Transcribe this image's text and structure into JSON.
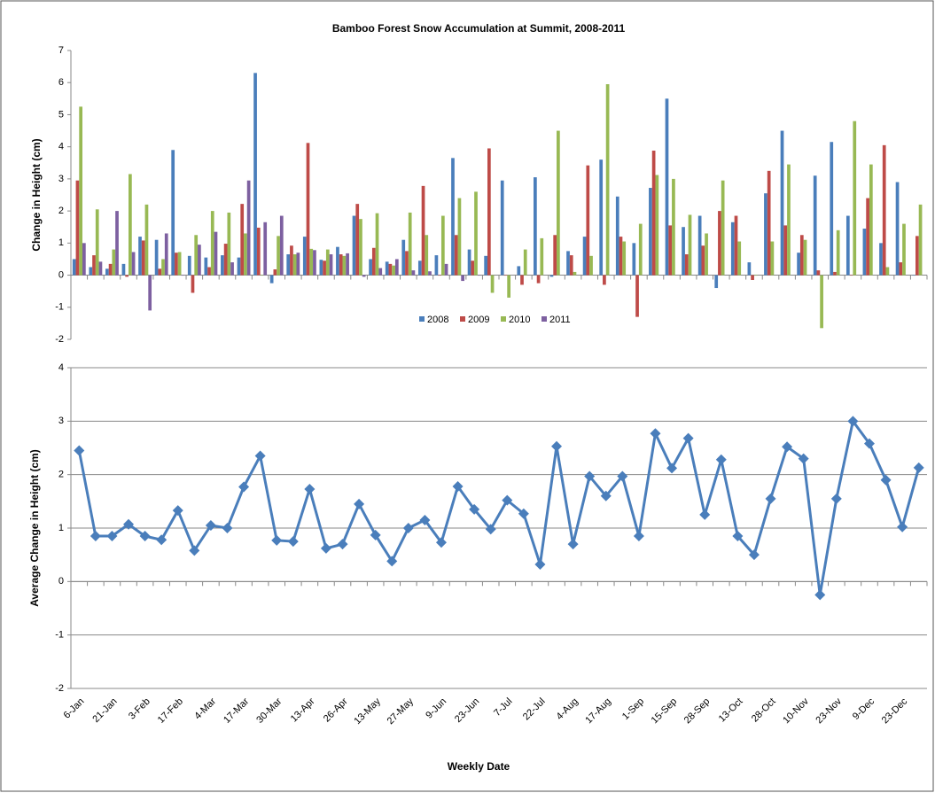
{
  "chart_data": [
    {
      "type": "bar",
      "title": "Bamboo Forest Snow Accumulation at Summit, 2008-2011",
      "ylabel": "Change in Height (cm)",
      "ylim": [
        -2,
        7
      ],
      "yticks": [
        -2,
        -1,
        0,
        1,
        2,
        3,
        4,
        5,
        6,
        7
      ],
      "grid": false,
      "legend": "center",
      "series": [
        {
          "name": "2008",
          "color": "#4a7ebb",
          "values": [
            0.5,
            0.25,
            0.2,
            0.35,
            1.2,
            1.1,
            3.9,
            0.6,
            0.55,
            0.62,
            0.55,
            6.3,
            -0.25,
            0.65,
            1.2,
            0.48,
            0.88,
            1.85,
            0.5,
            0.42,
            1.1,
            0.45,
            0.62,
            3.65,
            0.8,
            0.6,
            2.95,
            0.28,
            3.05,
            -0.05,
            0.75,
            1.2,
            3.6,
            2.45,
            1.0,
            2.72,
            5.5,
            1.5,
            1.85,
            -0.4,
            1.65,
            0.4,
            2.55,
            4.5,
            0.7,
            3.1,
            4.15,
            1.85,
            1.45,
            1.0,
            2.9,
            0
          ]
        },
        {
          "name": "2009",
          "color": "#be4b48",
          "values": [
            2.95,
            0.62,
            0.35,
            -0.05,
            1.08,
            0.2,
            0.7,
            -0.55,
            0.25,
            0.98,
            2.22,
            1.48,
            0.18,
            0.92,
            4.12,
            0.45,
            0.65,
            2.22,
            0.85,
            0.35,
            0.75,
            2.78,
            0,
            1.25,
            0.45,
            3.95,
            0,
            -0.3,
            -0.25,
            1.25,
            0.62,
            3.42,
            -0.3,
            1.2,
            -1.3,
            3.88,
            1.55,
            0.65,
            0.92,
            2.0,
            1.85,
            -0.15,
            3.25,
            1.55,
            1.25,
            0.15,
            0.1,
            0,
            2.4,
            4.05,
            0.4,
            1.22
          ]
        },
        {
          "name": "2010",
          "color": "#98b954",
          "values": [
            5.25,
            2.05,
            0.8,
            3.15,
            2.2,
            0.5,
            0.72,
            1.25,
            2.0,
            1.95,
            1.3,
            0,
            1.22,
            0.65,
            0.82,
            0.8,
            0.6,
            1.75,
            1.93,
            0.3,
            1.95,
            1.25,
            1.85,
            2.4,
            2.6,
            -0.55,
            -0.7,
            0.8,
            1.15,
            4.5,
            0.1,
            0.6,
            5.95,
            1.05,
            1.6,
            3.12,
            3.0,
            1.88,
            1.3,
            2.95,
            1.05,
            0,
            1.05,
            3.45,
            1.1,
            -1.65,
            1.4,
            4.8,
            3.45,
            0.25,
            1.6,
            2.2
          ]
        },
        {
          "name": "2011",
          "color": "#7d60a0",
          "values": [
            1.0,
            0.42,
            2.0,
            0.72,
            -1.1,
            1.3,
            0,
            0.95,
            1.35,
            0.4,
            2.95,
            1.65,
            1.85,
            0.7,
            0.78,
            0.65,
            0.68,
            -0.05,
            0.22,
            0.5,
            0.15,
            0.12,
            0.35,
            -0.18,
            0,
            null,
            null,
            null,
            null,
            null,
            null,
            null,
            null,
            null,
            null,
            null,
            null,
            null,
            null,
            null,
            null,
            null,
            null,
            null,
            null,
            null,
            null,
            null,
            null,
            null,
            null,
            null
          ]
        }
      ]
    },
    {
      "type": "line",
      "ylabel": "Average Change in Height (cm)",
      "xlabel": "Weekly Date",
      "ylim": [
        -2,
        4
      ],
      "yticks": [
        -2,
        -1,
        0,
        1,
        2,
        3,
        4
      ],
      "grid": true,
      "color": "#4a7ebb",
      "categories": [
        "6-Jan",
        null,
        "21-Jan",
        null,
        "3-Feb",
        null,
        "17-Feb",
        null,
        "4-Mar",
        null,
        "17-Mar",
        null,
        "30-Mar",
        null,
        "13-Apr",
        null,
        "26-Apr",
        null,
        "13-May",
        null,
        "27-May",
        null,
        "9-Jun",
        null,
        "23-Jun",
        null,
        "7-Jul",
        null,
        "22-Jul",
        null,
        "4-Aug",
        null,
        "17-Aug",
        null,
        "1-Sep",
        null,
        "15-Sep",
        null,
        "28-Sep",
        null,
        "13-Oct",
        null,
        "28-Oct",
        null,
        "10-Nov",
        null,
        "23-Nov",
        null,
        "9-Dec",
        null,
        "23-Dec",
        null
      ],
      "values": [
        2.45,
        0.85,
        0.85,
        1.07,
        0.85,
        0.78,
        1.33,
        0.58,
        1.05,
        1.0,
        1.77,
        2.35,
        0.77,
        0.75,
        1.73,
        0.62,
        0.7,
        1.45,
        0.87,
        0.38,
        1.0,
        1.15,
        0.73,
        1.78,
        1.35,
        0.98,
        1.52,
        1.27,
        0.32,
        2.53,
        0.7,
        1.97,
        1.6,
        1.97,
        0.85,
        2.77,
        2.12,
        2.68,
        1.25,
        2.28,
        0.85,
        0.5,
        1.55,
        2.52,
        2.3,
        -0.25,
        1.55,
        3.0,
        2.58,
        1.9,
        1.02,
        2.13
      ]
    }
  ]
}
